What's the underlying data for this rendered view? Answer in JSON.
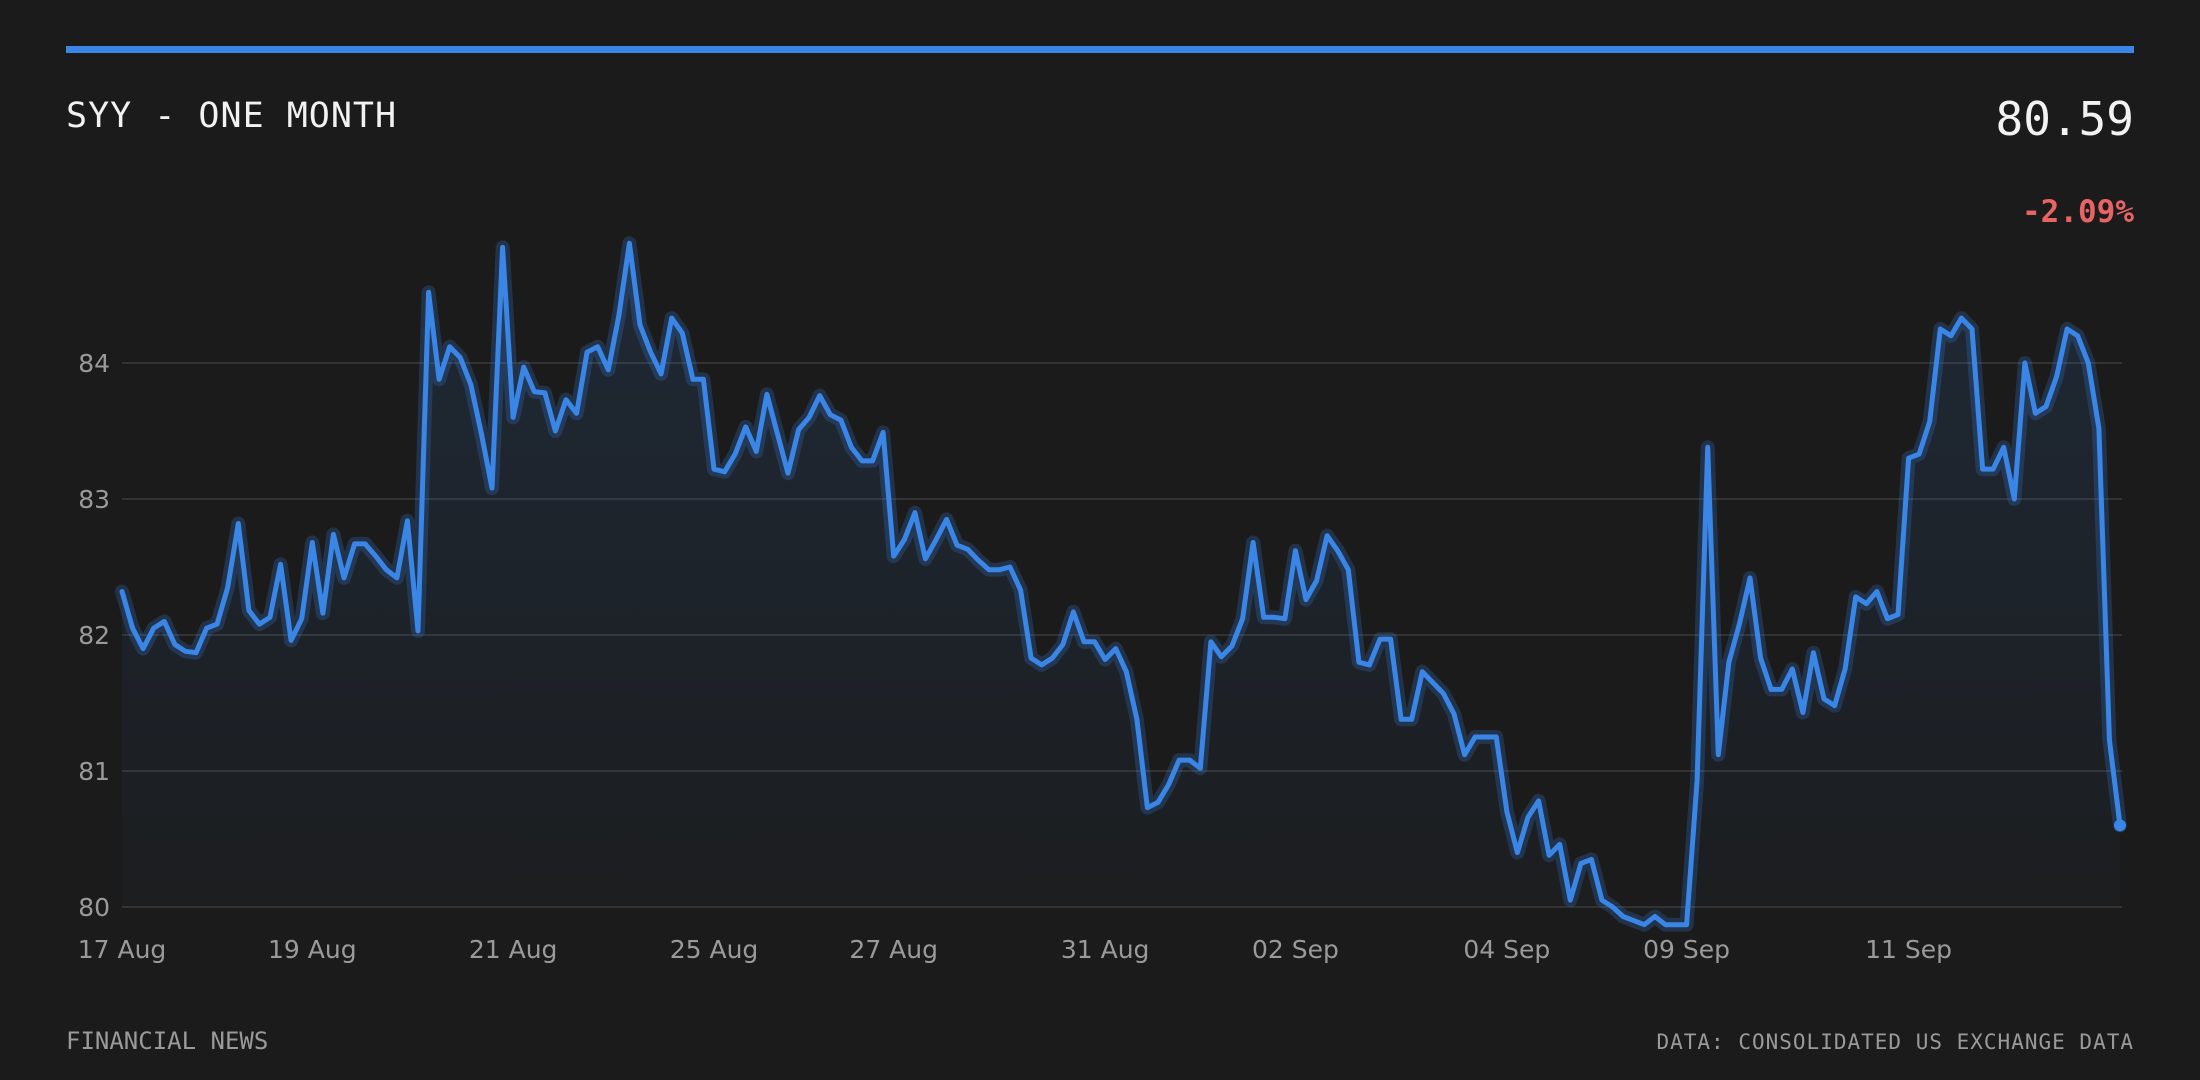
{
  "header": {
    "title": "SYY - ONE MONTH",
    "price": "80.59",
    "change": "-2.09%"
  },
  "footer": {
    "source_left": "FINANCIAL NEWS",
    "source_right": "DATA: CONSOLIDATED US EXCHANGE DATA"
  },
  "colors": {
    "background": "#1b1b1b",
    "accent": "#3a86e6",
    "negative": "#e86363",
    "text": "#f2f2f2",
    "muted": "#9a9a9a"
  },
  "chart_data": {
    "type": "area",
    "title": "SYY - ONE MONTH",
    "xlabel": "",
    "ylabel": "",
    "ylim": [
      80,
      85
    ],
    "yticks": [
      80,
      81,
      82,
      83,
      84
    ],
    "grid": true,
    "legend": "none",
    "xtick_labels": [
      {
        "label": "17 Aug",
        "index": 0
      },
      {
        "label": "19 Aug",
        "index": 18
      },
      {
        "label": "21 Aug",
        "index": 37
      },
      {
        "label": "25 Aug",
        "index": 56
      },
      {
        "label": "27 Aug",
        "index": 73
      },
      {
        "label": "31 Aug",
        "index": 93
      },
      {
        "label": "02 Sep",
        "index": 111
      },
      {
        "label": "04 Sep",
        "index": 131
      },
      {
        "label": "09 Sep",
        "index": 148
      },
      {
        "label": "11 Sep",
        "index": 169
      }
    ],
    "series": [
      {
        "values": [
          82.32,
          82.05,
          81.9,
          82.05,
          82.1,
          81.93,
          81.88,
          81.87,
          82.05,
          82.08,
          82.35,
          82.82,
          82.18,
          82.08,
          82.13,
          82.52,
          81.96,
          82.12,
          82.68,
          82.16,
          82.74,
          82.42,
          82.67,
          82.67,
          82.58,
          82.48,
          82.42,
          82.84,
          82.03,
          84.52,
          83.88,
          84.12,
          84.04,
          83.84,
          83.48,
          83.08,
          84.85,
          83.6,
          83.97,
          83.79,
          83.78,
          83.5,
          83.73,
          83.63,
          84.08,
          84.12,
          83.95,
          84.35,
          84.88,
          84.28,
          84.08,
          83.92,
          84.33,
          84.22,
          83.88,
          83.88,
          83.22,
          83.2,
          83.33,
          83.53,
          83.35,
          83.77,
          83.48,
          83.19,
          83.51,
          83.6,
          83.76,
          83.62,
          83.58,
          83.38,
          83.28,
          83.28,
          83.49,
          82.58,
          82.7,
          82.9,
          82.56,
          82.7,
          82.85,
          82.66,
          82.63,
          82.55,
          82.48,
          82.48,
          82.5,
          82.33,
          81.83,
          81.78,
          81.83,
          81.93,
          82.17,
          81.95,
          81.95,
          81.82,
          81.9,
          81.73,
          81.38,
          80.73,
          80.77,
          80.9,
          81.08,
          81.08,
          81.02,
          81.95,
          81.84,
          81.92,
          82.12,
          82.68,
          82.13,
          82.13,
          82.12,
          82.62,
          82.26,
          82.4,
          82.73,
          82.62,
          82.48,
          81.8,
          81.78,
          81.97,
          81.97,
          81.38,
          81.38,
          81.73,
          81.65,
          81.57,
          81.42,
          81.12,
          81.25,
          81.25,
          81.25,
          80.7,
          80.4,
          80.66,
          80.78,
          80.38,
          80.46,
          80.05,
          80.32,
          80.35,
          80.05,
          80.0,
          79.93,
          79.9,
          79.87,
          79.93,
          79.87,
          79.87,
          79.87,
          80.93,
          83.38,
          81.12,
          81.8,
          82.08,
          82.42,
          81.83,
          81.6,
          81.6,
          81.75,
          81.43,
          81.87,
          81.53,
          81.48,
          81.75,
          82.28,
          82.23,
          82.32,
          82.12,
          82.15,
          83.3,
          83.33,
          83.57,
          84.25,
          84.2,
          84.33,
          84.25,
          83.22,
          83.22,
          83.38,
          83.0,
          84.0,
          83.63,
          83.68,
          83.9,
          84.25,
          84.2,
          84.0,
          83.52,
          81.23,
          80.6
        ]
      }
    ]
  }
}
